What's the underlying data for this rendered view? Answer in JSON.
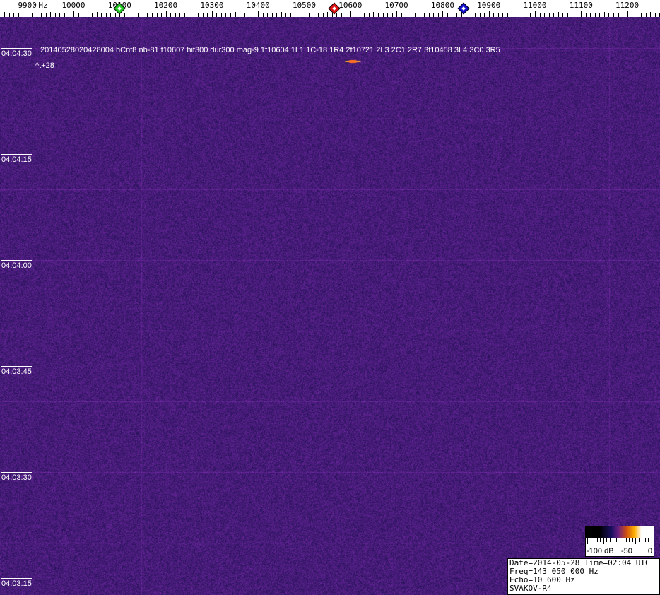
{
  "chart_data": {
    "type": "heatmap",
    "xlabel": "Hz",
    "x_ticks": [
      "9900",
      "10000",
      "10100",
      "10200",
      "10300",
      "10400",
      "10500",
      "10600",
      "10700",
      "10800",
      "10900",
      "11000",
      "11100",
      "11200"
    ],
    "xlim": [
      9850,
      11285
    ],
    "y_ticks": [
      "04:04:30",
      "04:04:15",
      "04:04:00",
      "04:03:45",
      "04:03:30",
      "04:03:15"
    ],
    "ylim": [
      "04:04:33",
      "04:03:11"
    ],
    "colormap_range_db": [
      -100,
      0
    ],
    "markers": [
      {
        "freq": 10100,
        "color": "#22cc22"
      },
      {
        "freq": 10565,
        "color": "#dd1111"
      },
      {
        "freq": 10845,
        "color": "#1111cc"
      }
    ],
    "detection": {
      "freq": 10607,
      "time": "04:04:28"
    }
  },
  "annotation": {
    "line1": "20140528020428004 hCnt8 nb-81 f10607 hit300 dur300 mag-9 1f10604 1L1 1C-18 1R4 2f10721 2L3 2C1 2R7 3f10458 3L4 3C0 3R5",
    "line2": "^t+28"
  },
  "colorbar": {
    "labels": [
      "-100 dB",
      "-50",
      "0"
    ]
  },
  "info": {
    "lines": [
      "Date=2014-05-28 Time=02:04 UTC",
      "Freq=143 050 000 Hz",
      "Echo=10 600 Hz",
      "SVAKOV-R4"
    ]
  }
}
